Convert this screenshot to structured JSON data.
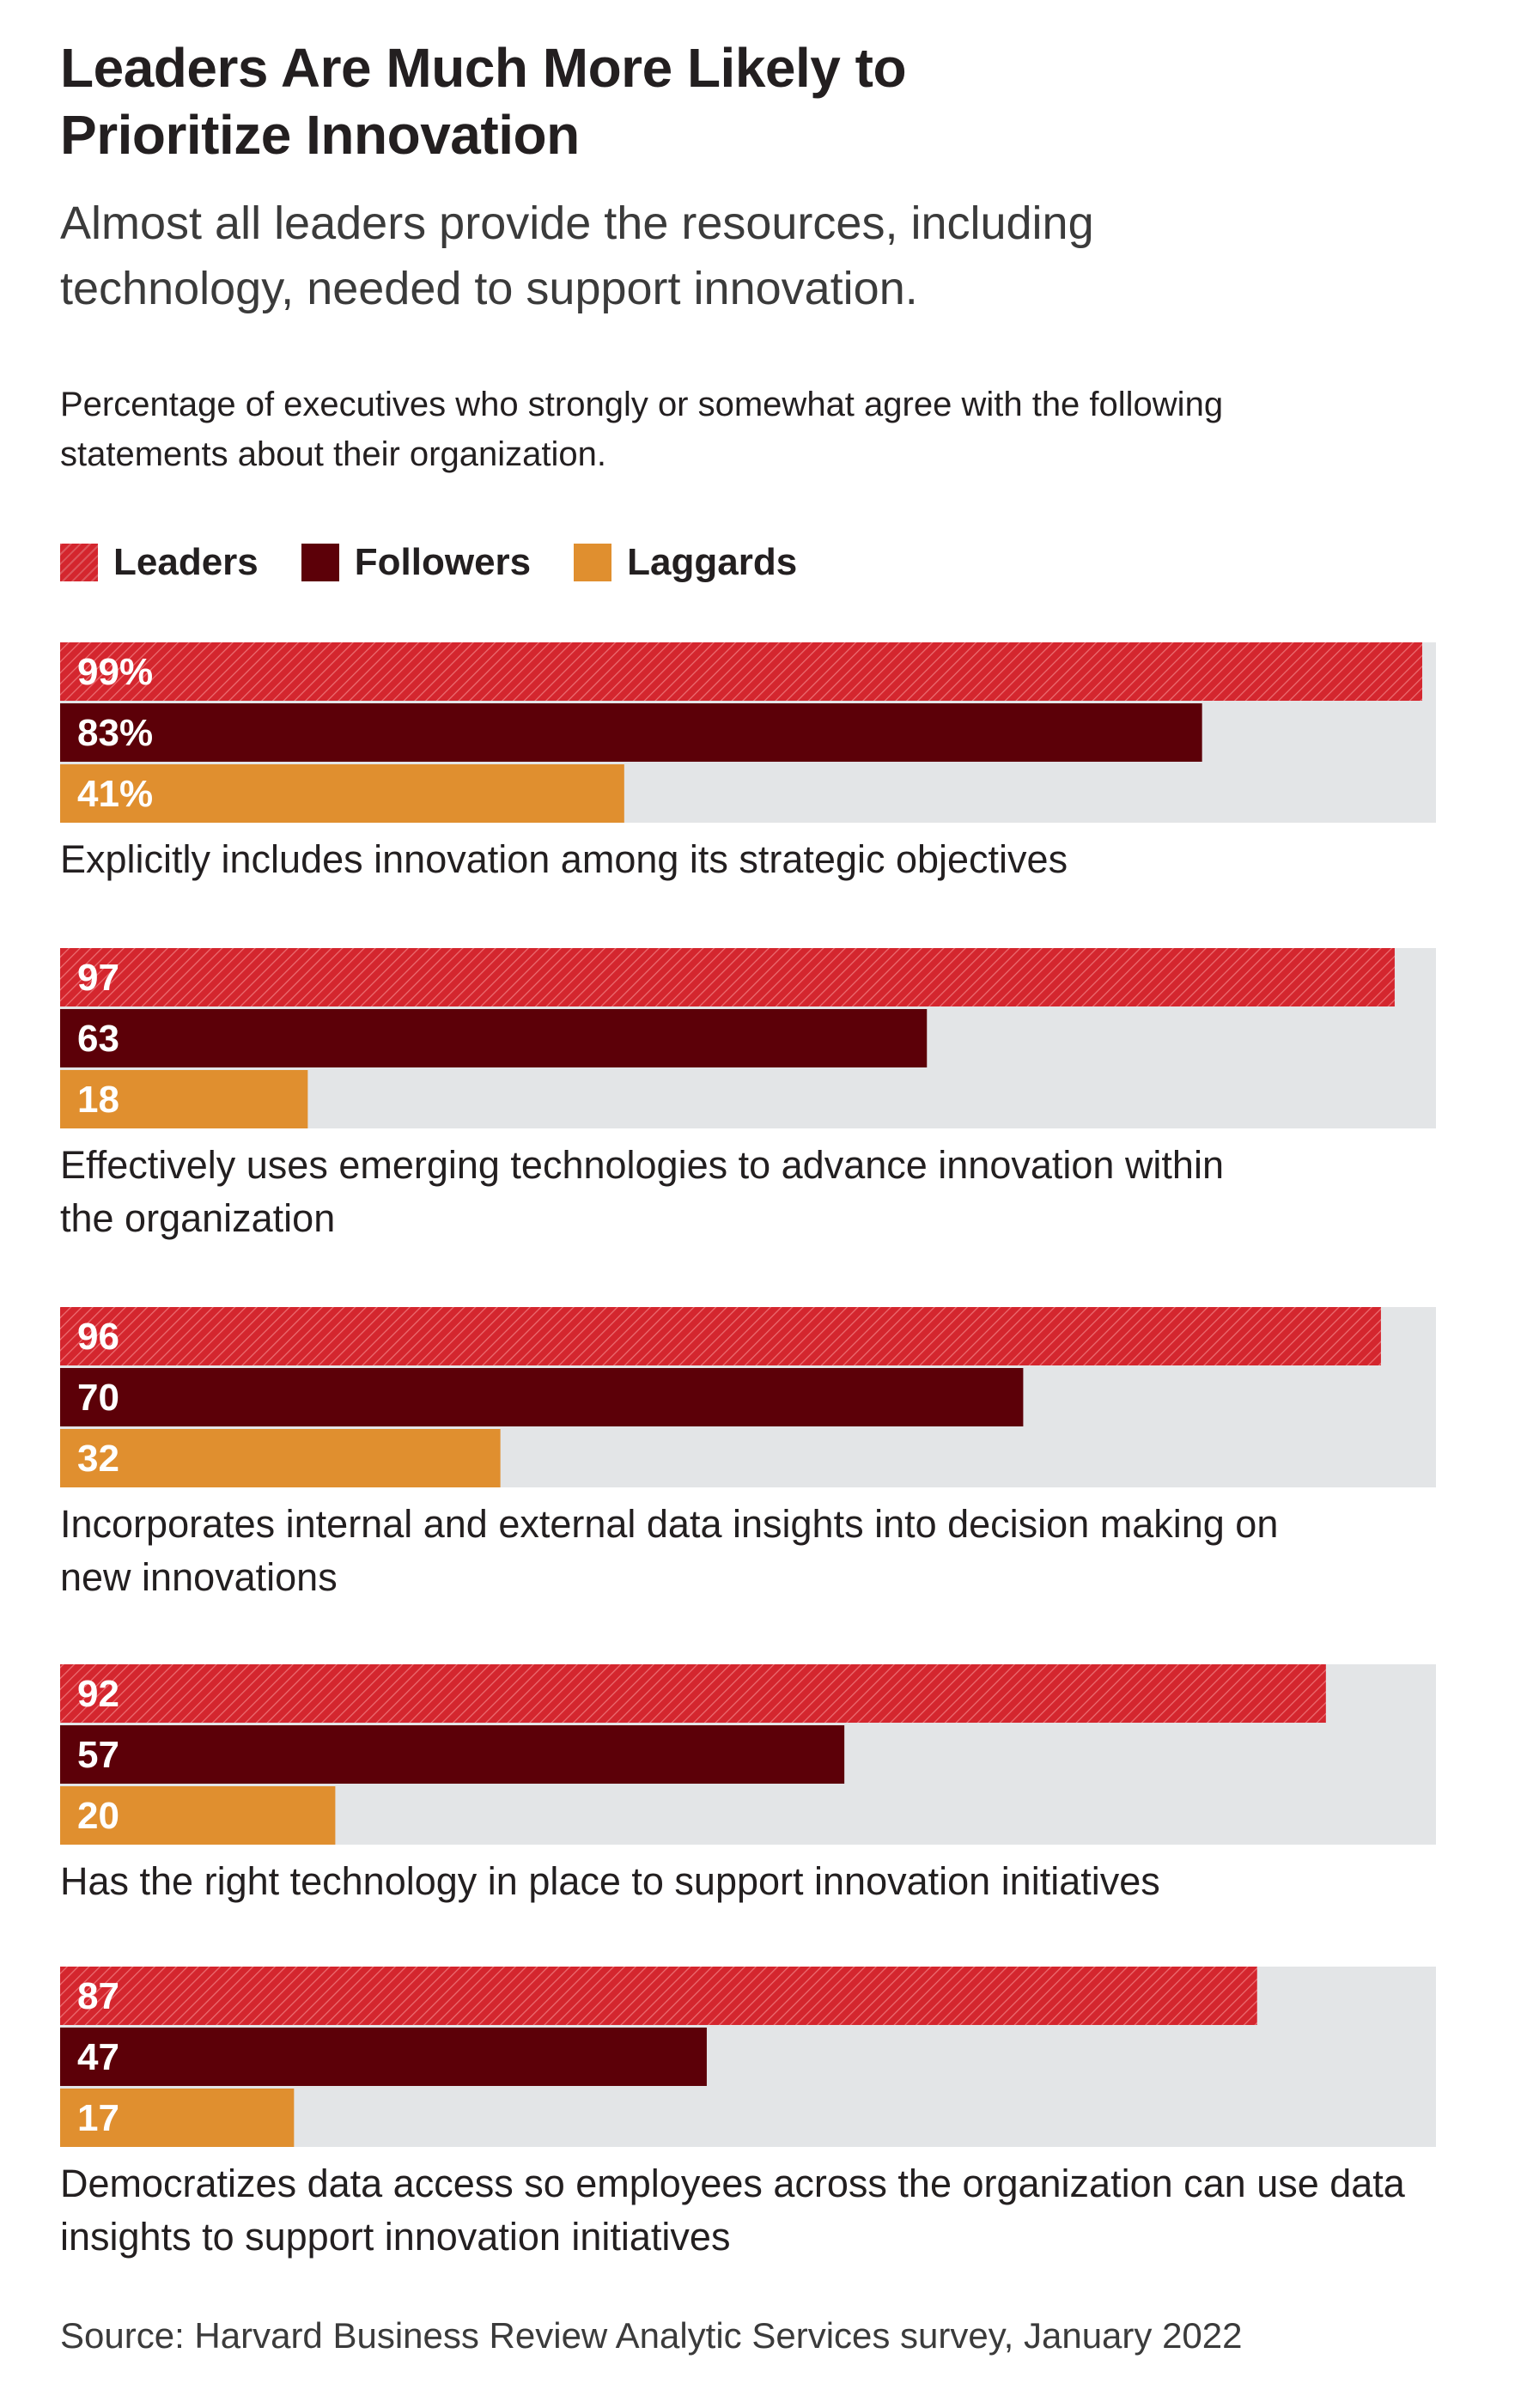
{
  "header": {
    "title_line1": "Leaders Are Much More Likely to",
    "title_line2": "Prioritize Innovation",
    "subtitle_line1": "Almost all leaders provide the resources, including",
    "subtitle_line2": "technology, needed to support innovation.",
    "desc_line1": "Percentage of executives who strongly or somewhat agree with the following",
    "desc_line2": "statements about their organization."
  },
  "colors": {
    "leaders": "#d4262e",
    "followers": "#5c0008",
    "laggards": "#e08f2f",
    "track": "#e3e5e7"
  },
  "chart_data": {
    "type": "bar",
    "orientation": "horizontal",
    "title": "Leaders Are Much More Likely to Prioritize Innovation",
    "xlim": [
      0,
      100
    ],
    "legend": [
      "Leaders",
      "Followers",
      "Laggards"
    ],
    "categories": [
      [
        "Explicitly includes innovation among its strategic objectives"
      ],
      [
        "Effectively uses emerging technologies to advance innovation within",
        "the organization"
      ],
      [
        "Incorporates internal and external data insights into decision making on",
        "new innovations"
      ],
      [
        "Has the right technology in place to support innovation initiatives"
      ],
      [
        "Democratizes data access so employees across the organization can use data",
        "insights to support innovation initiatives"
      ]
    ],
    "series": [
      {
        "name": "Leaders",
        "values": [
          99,
          97,
          96,
          92,
          87
        ],
        "labels": [
          "99%",
          "97",
          "96",
          "92",
          "87"
        ]
      },
      {
        "name": "Followers",
        "values": [
          83,
          63,
          70,
          57,
          47
        ],
        "labels": [
          "83%",
          "63",
          "70",
          "57",
          "47"
        ]
      },
      {
        "name": "Laggards",
        "values": [
          41,
          18,
          32,
          20,
          17
        ],
        "labels": [
          "41%",
          "18",
          "32",
          "20",
          "17"
        ]
      }
    ]
  },
  "footer": {
    "source": "Source: Harvard Business Review Analytic Services survey, January 2022"
  }
}
